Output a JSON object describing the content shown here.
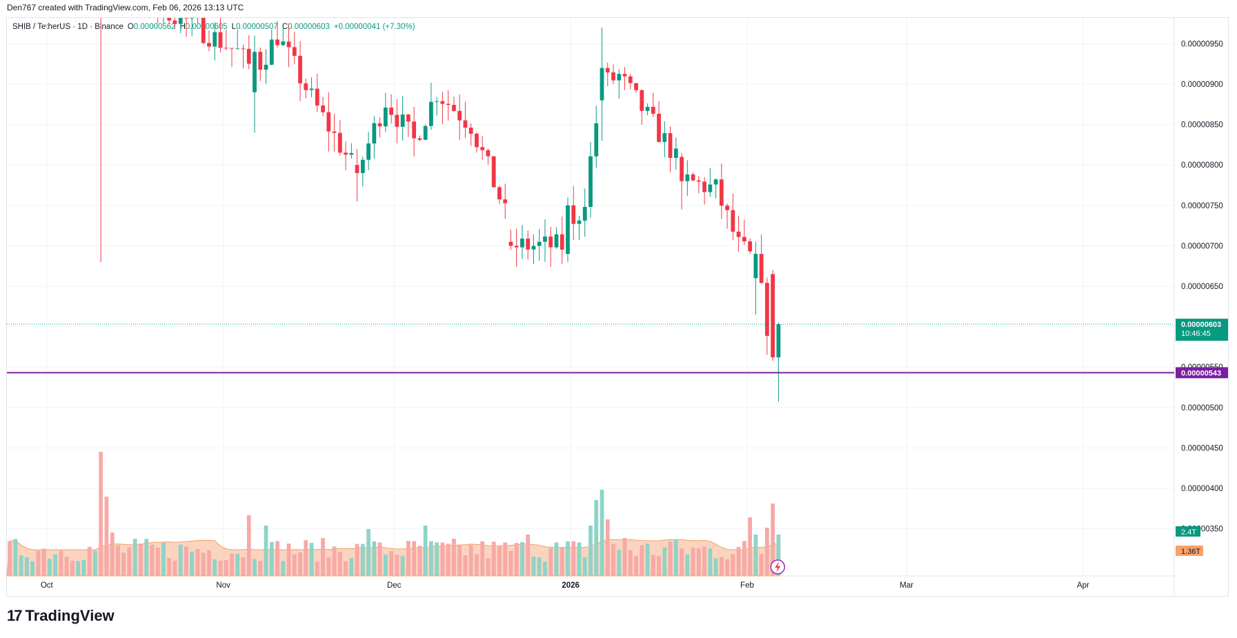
{
  "caption": "Den767 created with TradingView.com, Feb 06, 2026 13:13 UTC",
  "header": {
    "symbol": "SHIB / TetherUS · 1D · Binance",
    "open_label": "O",
    "open": "0.00000562",
    "high_label": "H",
    "high": "0.00000605",
    "low_label": "L",
    "low": "0.00000507",
    "close_label": "C",
    "close": "0.00000603",
    "change": "+0.00000041 (+7.30%)"
  },
  "brand": {
    "logo": "17",
    "name": "TradingView"
  },
  "colors": {
    "up": "#089981",
    "down": "#f23645",
    "vol_up": "#8fd3c7",
    "vol_down": "#f7a9a7",
    "vol_ma": "#f7b892",
    "support": "#7b1fa2",
    "last_price": "#089981",
    "grid": "#f0f3fa",
    "axis_text": "#131722"
  },
  "chart_data": {
    "type": "candlestick",
    "y_axis": {
      "ticks": [
        "0.00000950",
        "0.00000900",
        "0.00000850",
        "0.00000800",
        "0.00000750",
        "0.00000700",
        "0.00000650",
        "0.00000600",
        "0.00000550",
        "0.00000500",
        "0.00000450",
        "0.00000400",
        "0.00000350"
      ],
      "range": [
        3.3e-06,
        9.7e-06
      ]
    },
    "x_axis": {
      "ticks": [
        "Oct",
        "Nov",
        "Dec",
        "2026",
        "Feb",
        "Mar",
        "Apr"
      ],
      "range": [
        "2025-09-24",
        "2026-04-17"
      ]
    },
    "last_price": {
      "value": 6.03e-06,
      "label": "0.00000603",
      "countdown": "10:46:45"
    },
    "support_line": {
      "value": 5.43e-06,
      "label": "0.00000543"
    },
    "volume_labels": {
      "volume": "2.4T",
      "volume_ma": "1.36T"
    },
    "ohlc_anchors": [
      {
        "date": "2025-10-10",
        "high": 1.25e-05,
        "low": 6.8e-06
      },
      {
        "date": "2025-11-06",
        "open": 8.9e-06,
        "close": 9.4e-06,
        "high": 9.6e-06,
        "low": 8.4e-06
      },
      {
        "date": "2025-11-24",
        "open": 8e-06,
        "close": 7.9e-06,
        "high": 8.2e-06,
        "low": 7.55e-06
      },
      {
        "date": "2025-12-21",
        "open": 7.05e-06,
        "close": 7e-06,
        "high": 7.2e-06,
        "low": 6.95e-06
      },
      {
        "date": "2025-12-31",
        "open": 6.9e-06,
        "close": 7.5e-06,
        "high": 7.6e-06,
        "low": 6.8e-06
      },
      {
        "date": "2026-01-06",
        "open": 8.8e-06,
        "close": 9.2e-06,
        "high": 9.7e-06,
        "low": 8.3e-06
      },
      {
        "date": "2026-01-20",
        "open": 8.1e-06,
        "close": 7.8e-06,
        "high": 8.15e-06,
        "low": 7.45e-06
      },
      {
        "date": "2026-02-02",
        "open": 6.6e-06,
        "close": 6.9e-06,
        "high": 7.05e-06,
        "low": 6.15e-06
      },
      {
        "date": "2026-02-05",
        "open": 6.65e-06,
        "close": 5.62e-06,
        "high": 6.7e-06,
        "low": 5.58e-06
      },
      {
        "date": "2026-02-06",
        "open": 5.62e-06,
        "close": 6.03e-06,
        "high": 6.05e-06,
        "low": 5.07e-06
      }
    ]
  }
}
